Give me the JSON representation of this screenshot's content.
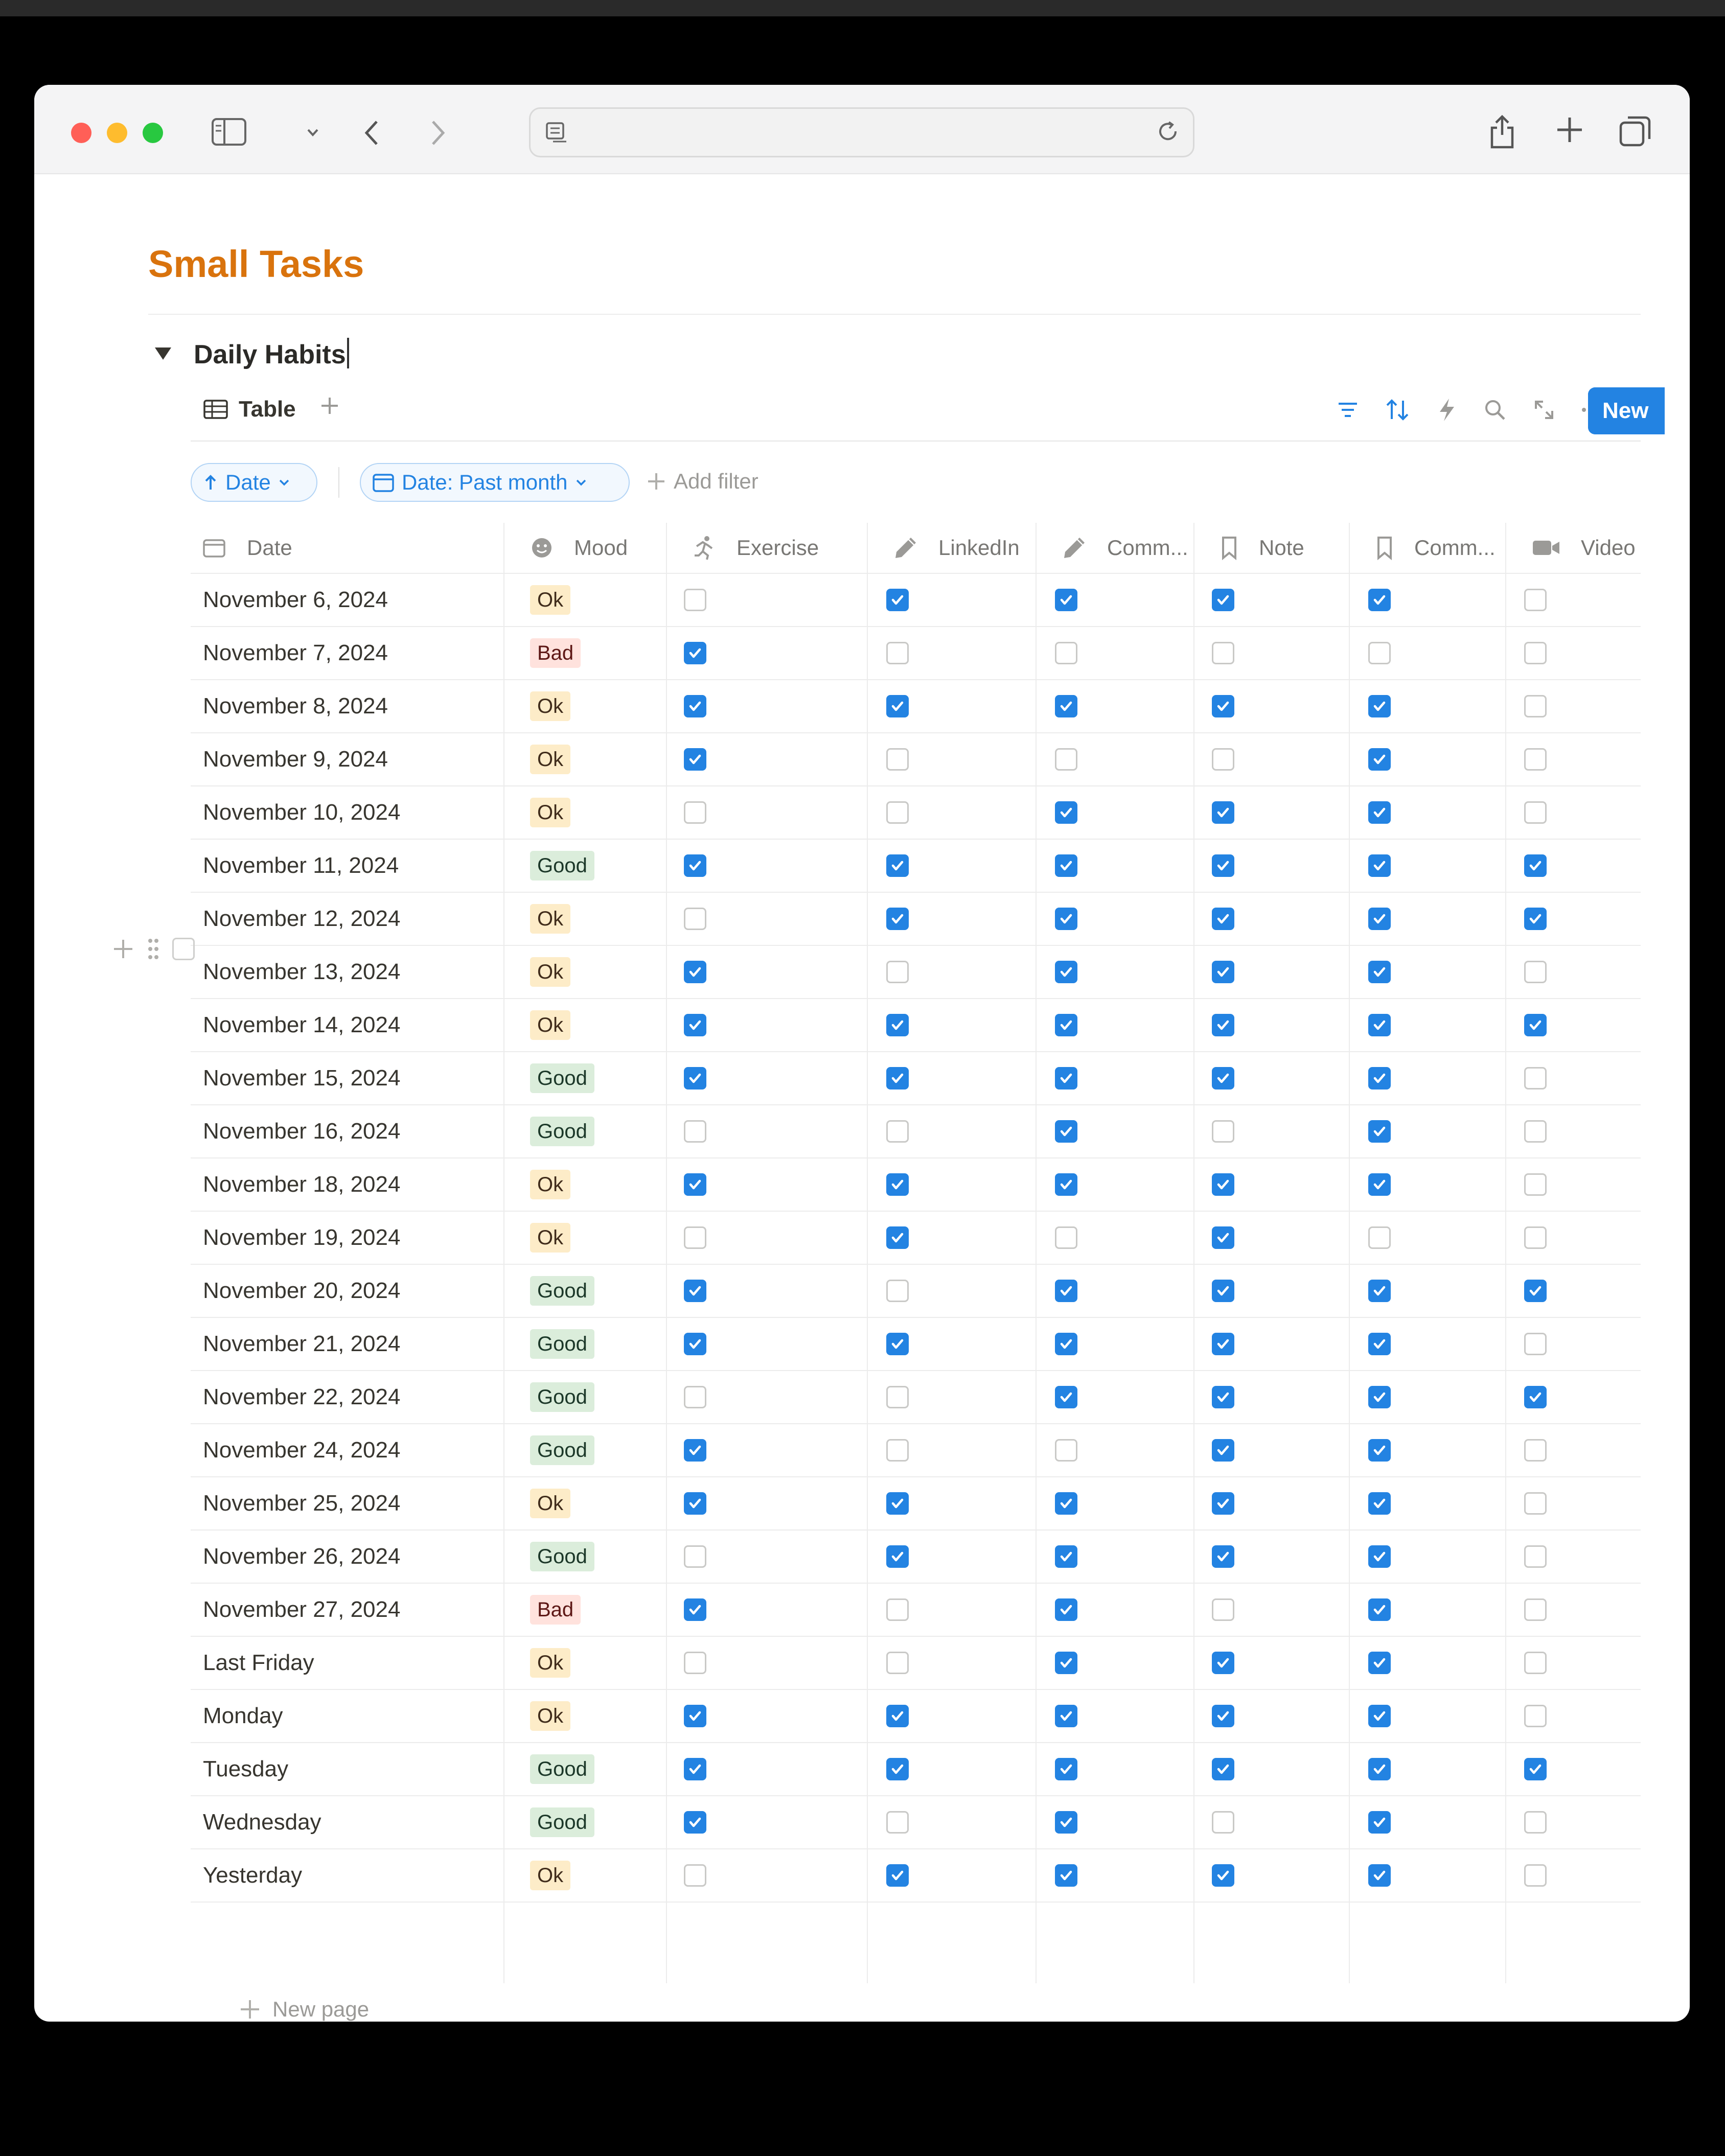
{
  "page": {
    "title": "Small Tasks",
    "database_title": "Daily Habits"
  },
  "view": {
    "tab_label": "Table",
    "new_button": "New",
    "sort_pill": "Date",
    "filter_pill": "Date: Past month",
    "add_filter": "Add filter",
    "new_page": "New page"
  },
  "columns": [
    {
      "label": "Date",
      "icon": "calendar-icon"
    },
    {
      "label": "Mood",
      "icon": "smiley-icon"
    },
    {
      "label": "Exercise",
      "icon": "running-icon"
    },
    {
      "label": "LinkedIn",
      "icon": "pencil-icon"
    },
    {
      "label": "Comm...",
      "icon": "pencil-icon"
    },
    {
      "label": "Note",
      "icon": "bookmark-icon"
    },
    {
      "label": "Comm...",
      "icon": "bookmark-icon"
    },
    {
      "label": "Video",
      "icon": "video-icon"
    }
  ],
  "rows": [
    {
      "date": "November 6, 2024",
      "mood": "Ok",
      "checks": [
        false,
        true,
        true,
        true,
        true,
        false
      ],
      "edge": true
    },
    {
      "date": "November 7, 2024",
      "mood": "Bad",
      "checks": [
        true,
        false,
        false,
        false,
        false,
        false
      ],
      "edge": false
    },
    {
      "date": "November 8, 2024",
      "mood": "Ok",
      "checks": [
        true,
        true,
        true,
        true,
        true,
        false
      ],
      "edge": false
    },
    {
      "date": "November 9, 2024",
      "mood": "Ok",
      "checks": [
        true,
        false,
        false,
        false,
        true,
        false
      ],
      "edge": false
    },
    {
      "date": "November 10, 2024",
      "mood": "Ok",
      "checks": [
        false,
        false,
        true,
        true,
        true,
        false
      ],
      "edge": true
    },
    {
      "date": "November 11, 2024",
      "mood": "Good",
      "checks": [
        true,
        true,
        true,
        true,
        true,
        true
      ],
      "edge": true
    },
    {
      "date": "November 12, 2024",
      "mood": "Ok",
      "checks": [
        false,
        true,
        true,
        true,
        true,
        true
      ],
      "edge": true
    },
    {
      "date": "November 13, 2024",
      "mood": "Ok",
      "checks": [
        true,
        false,
        true,
        true,
        true,
        false
      ],
      "edge": false
    },
    {
      "date": "November 14, 2024",
      "mood": "Ok",
      "checks": [
        true,
        true,
        true,
        true,
        true,
        true
      ],
      "edge": true
    },
    {
      "date": "November 15, 2024",
      "mood": "Good",
      "checks": [
        true,
        true,
        true,
        true,
        true,
        false
      ],
      "edge": true
    },
    {
      "date": "November 16, 2024",
      "mood": "Good",
      "checks": [
        false,
        false,
        true,
        false,
        true,
        false
      ],
      "edge": false
    },
    {
      "date": "November 18, 2024",
      "mood": "Ok",
      "checks": [
        true,
        true,
        true,
        true,
        true,
        false
      ],
      "edge": true
    },
    {
      "date": "November 19, 2024",
      "mood": "Ok",
      "checks": [
        false,
        true,
        false,
        true,
        false,
        false
      ],
      "edge": false
    },
    {
      "date": "November 20, 2024",
      "mood": "Good",
      "checks": [
        true,
        false,
        true,
        true,
        true,
        true
      ],
      "edge": true
    },
    {
      "date": "November 21, 2024",
      "mood": "Good",
      "checks": [
        true,
        true,
        true,
        true,
        true,
        false
      ],
      "edge": true
    },
    {
      "date": "November 22, 2024",
      "mood": "Good",
      "checks": [
        false,
        false,
        true,
        true,
        true,
        true
      ],
      "edge": false
    },
    {
      "date": "November 24, 2024",
      "mood": "Good",
      "checks": [
        true,
        false,
        false,
        true,
        true,
        false
      ],
      "edge": true
    },
    {
      "date": "November 25, 2024",
      "mood": "Ok",
      "checks": [
        true,
        true,
        true,
        true,
        true,
        false
      ],
      "edge": true
    },
    {
      "date": "November 26, 2024",
      "mood": "Good",
      "checks": [
        false,
        true,
        true,
        true,
        true,
        false
      ],
      "edge": false
    },
    {
      "date": "November 27, 2024",
      "mood": "Bad",
      "checks": [
        true,
        false,
        true,
        false,
        true,
        false
      ],
      "edge": false
    },
    {
      "date": "Last Friday",
      "mood": "Ok",
      "checks": [
        false,
        false,
        true,
        true,
        true,
        false
      ],
      "edge": false
    },
    {
      "date": "Monday",
      "mood": "Ok",
      "checks": [
        true,
        true,
        true,
        true,
        true,
        false
      ],
      "edge": true
    },
    {
      "date": "Tuesday",
      "mood": "Good",
      "checks": [
        true,
        true,
        true,
        true,
        true,
        true
      ],
      "edge": true
    },
    {
      "date": "Wednesday",
      "mood": "Good",
      "checks": [
        true,
        false,
        true,
        false,
        true,
        false
      ],
      "edge": true
    },
    {
      "date": "Yesterday",
      "mood": "Ok",
      "checks": [
        false,
        true,
        true,
        true,
        true,
        false
      ],
      "edge": false
    }
  ],
  "colors": {
    "title_orange": "#d9730d",
    "accent_blue": "#2383e2",
    "tag_ok_bg": "#fdecc8",
    "tag_bad_bg": "#ffe2dd",
    "tag_good_bg": "#dbeddb"
  }
}
